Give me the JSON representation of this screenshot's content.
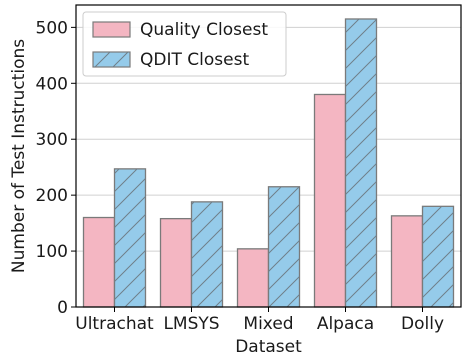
{
  "chart_data": {
    "type": "bar",
    "categories": [
      "Ultrachat",
      "LMSYS",
      "Mixed",
      "Alpaca",
      "Dolly"
    ],
    "series": [
      {
        "name": "Quality Closest",
        "values": [
          160,
          158,
          104,
          380,
          163
        ],
        "color": "#f4b6c2",
        "hatch": false
      },
      {
        "name": "QDIT Closest",
        "values": [
          247,
          188,
          215,
          515,
          180
        ],
        "color": "#95cbea",
        "hatch": true
      }
    ],
    "xlabel": "Dataset",
    "ylabel": "Number of Test Instructions",
    "ylim": [
      0,
      540
    ],
    "yticks": [
      0,
      100,
      200,
      300,
      400,
      500
    ],
    "grid": "horizontal",
    "legend_position": "top-left"
  }
}
